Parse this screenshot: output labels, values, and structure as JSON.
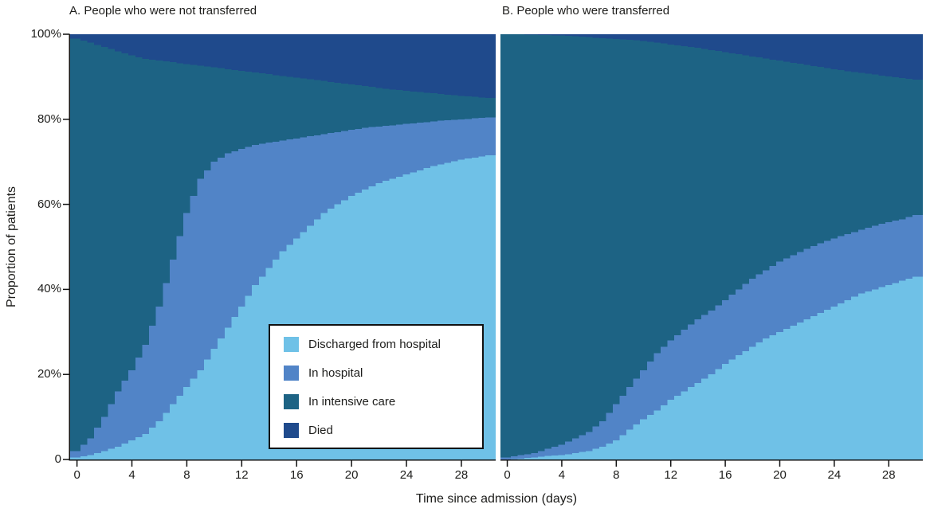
{
  "figure": {
    "panels": [
      {
        "title": "A. People who were not transferred"
      },
      {
        "title": "B. People who were transferred"
      }
    ],
    "y_axis": {
      "label": "Proportion of patients",
      "ticks": [
        "0",
        "20%",
        "40%",
        "60%",
        "80%",
        "100%"
      ],
      "tick_values": [
        0,
        20,
        40,
        60,
        80,
        100
      ]
    },
    "x_axis": {
      "label": "Time since admission (days)",
      "tick_values": [
        0,
        4,
        8,
        12,
        16,
        20,
        24,
        28
      ]
    },
    "legend": {
      "items": [
        {
          "label": "Discharged from hospital",
          "color": "#6FC1E7"
        },
        {
          "label": "In hospital",
          "color": "#5184C7"
        },
        {
          "label": "In intensive care",
          "color": "#1D6384"
        },
        {
          "label": "Died",
          "color": "#1F4A8C"
        }
      ]
    }
  },
  "chart_data": [
    {
      "type": "area",
      "title": "A. People who were not transferred",
      "xlabel": "Time since admission (days)",
      "ylabel": "Proportion of patients",
      "stacking": "percent, bottom-to-top as listed",
      "ylim": [
        0,
        100
      ],
      "x": [
        0,
        1,
        2,
        3,
        4,
        5,
        6,
        7,
        8,
        9,
        10,
        11,
        12,
        13,
        14,
        15,
        16,
        17,
        18,
        19,
        20,
        21,
        22,
        23,
        24,
        25,
        26,
        27,
        28,
        29,
        30
      ],
      "series": [
        {
          "name": "Discharged from hospital",
          "color": "#6FC1E7",
          "values": [
            0.5,
            1,
            2,
            3,
            4.5,
            6,
            9,
            13,
            17,
            21,
            26,
            31,
            36,
            41,
            45,
            49,
            52,
            55,
            58,
            60,
            62,
            63.5,
            65,
            66,
            67,
            68,
            69,
            69.8,
            70.5,
            71,
            71.5
          ]
        },
        {
          "name": "In hospital",
          "color": "#5184C7",
          "values": [
            1.5,
            4,
            8,
            13,
            16.5,
            21,
            27,
            34,
            41,
            45,
            44,
            41,
            37,
            33,
            29.5,
            26,
            23.5,
            21,
            18.5,
            17,
            15.5,
            14.5,
            13.3,
            12.6,
            11.9,
            11.2,
            10.5,
            10,
            9.5,
            9.2,
            8.9
          ]
        },
        {
          "name": "In intensive care",
          "color": "#1D6384",
          "values": [
            97,
            93,
            87,
            80,
            74,
            67.2,
            57.8,
            46.4,
            35,
            26.6,
            22.2,
            19.8,
            18.4,
            17,
            16.1,
            15.2,
            14.3,
            13.4,
            12.5,
            11.6,
            10.7,
            9.8,
            9.1,
            8.4,
            7.8,
            7.2,
            6.6,
            6,
            5.5,
            5.1,
            4.6
          ]
        },
        {
          "name": "Died",
          "color": "#1F4A8C",
          "values": [
            1,
            2,
            3,
            4,
            5,
            5.8,
            6.2,
            6.6,
            7,
            7.4,
            7.8,
            8.2,
            8.6,
            9,
            9.4,
            9.8,
            10.2,
            10.6,
            11,
            11.4,
            11.8,
            12.2,
            12.6,
            13,
            13.3,
            13.6,
            13.9,
            14.2,
            14.5,
            14.7,
            15
          ]
        }
      ]
    },
    {
      "type": "area",
      "title": "B. People who were transferred",
      "xlabel": "Time since admission (days)",
      "ylabel": "Proportion of patients",
      "stacking": "percent, bottom-to-top as listed",
      "ylim": [
        0,
        100
      ],
      "x": [
        0,
        1,
        2,
        3,
        4,
        5,
        6,
        7,
        8,
        9,
        10,
        11,
        12,
        13,
        14,
        15,
        16,
        17,
        18,
        19,
        20,
        21,
        22,
        23,
        24,
        25,
        26,
        27,
        28,
        29,
        30
      ],
      "series": [
        {
          "name": "Discharged from hospital",
          "color": "#6FC1E7",
          "values": [
            0,
            0.2,
            0.5,
            0.8,
            1,
            1.5,
            2,
            3,
            4.5,
            7,
            9.5,
            11.5,
            14,
            16,
            18,
            20,
            22.5,
            24.5,
            26.5,
            28.5,
            30,
            31.5,
            33,
            34.5,
            36,
            37.5,
            39,
            40,
            41,
            42,
            43
          ]
        },
        {
          "name": "In hospital",
          "color": "#5184C7",
          "values": [
            0.5,
            0.8,
            1,
            1.7,
            2.5,
            3.5,
            4.5,
            6,
            8.5,
            10,
            11.5,
            13.5,
            14,
            14.5,
            15,
            15,
            15,
            15.5,
            16,
            16,
            16.5,
            16.5,
            16.5,
            16.3,
            16,
            15.5,
            15,
            15,
            14.8,
            14.5,
            14.5
          ]
        },
        {
          "name": "In intensive care",
          "color": "#1D6384",
          "values": [
            99.5,
            99,
            98.4,
            97.3,
            96.2,
            94.5,
            92.8,
            90.1,
            85.9,
            81.7,
            77.4,
            73,
            69.6,
            66.7,
            63.8,
            61.3,
            58.3,
            55.3,
            52.3,
            49.8,
            47.3,
            45.3,
            43.3,
            41.5,
            39.8,
            38.3,
            36.9,
            35.5,
            34.3,
            33.2,
            31.8
          ]
        },
        {
          "name": "Died",
          "color": "#1F4A8C",
          "values": [
            0,
            0,
            0.1,
            0.2,
            0.3,
            0.5,
            0.7,
            0.9,
            1.1,
            1.3,
            1.6,
            2,
            2.4,
            2.8,
            3.2,
            3.7,
            4.2,
            4.7,
            5.2,
            5.7,
            6.2,
            6.7,
            7.2,
            7.7,
            8.2,
            8.7,
            9.1,
            9.5,
            9.9,
            10.3,
            10.7
          ]
        }
      ]
    }
  ]
}
